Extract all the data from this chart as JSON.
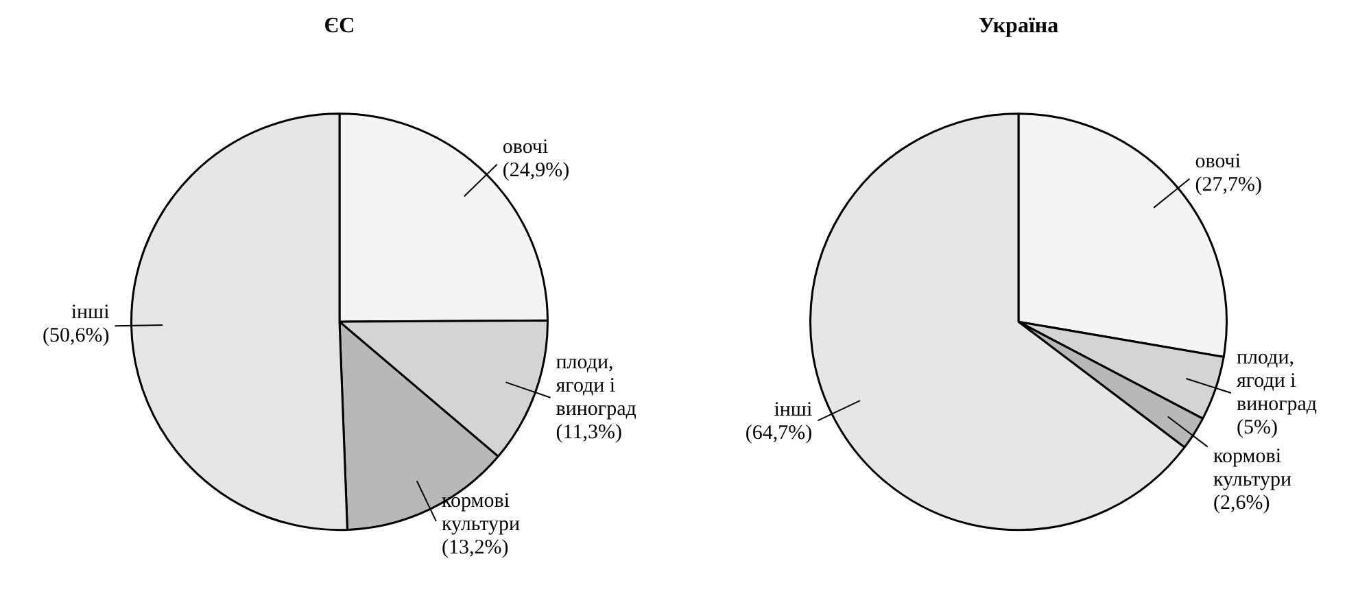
{
  "chart_data": [
    {
      "type": "pie",
      "title": "ЄС",
      "categories": [
        "овочі",
        "плоди, ягоди і виноград",
        "кормові культури",
        "інші"
      ],
      "values": [
        24.9,
        11.3,
        13.2,
        50.6
      ],
      "colors": [
        "#f4f4f4",
        "#d4d4d4",
        "#b8b8b8",
        "#e6e6e6"
      ],
      "value_labels": [
        "(24,9%)",
        "(11,3%)",
        "(13,2%)",
        "(50,6%)"
      ]
    },
    {
      "type": "pie",
      "title": "Україна",
      "categories": [
        "овочі",
        "плоди, ягоди і виноград",
        "кормові культури",
        "інші"
      ],
      "values": [
        27.7,
        5,
        2.6,
        64.7
      ],
      "colors": [
        "#f4f4f4",
        "#d4d4d4",
        "#b8b8b8",
        "#e6e6e6"
      ],
      "value_labels": [
        "(27,7%)",
        "(5%)",
        "(2,6%)",
        "(64,7%)"
      ]
    }
  ]
}
